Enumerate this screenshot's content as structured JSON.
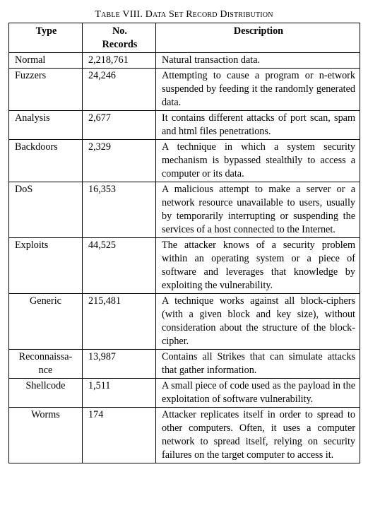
{
  "caption": "Table VIII. Data Set Record Distribution",
  "headers": {
    "type": "Type",
    "records_line1": "No.",
    "records_line2": "Records",
    "description": "Description"
  },
  "rows": [
    {
      "type": "Normal",
      "records": "2,218,761",
      "description": "Natural transaction data."
    },
    {
      "type": "Fuzzers",
      "records": "24,246",
      "description": "Attempting to cause a program or n-etwork suspended by feeding it the randomly generated data."
    },
    {
      "type": "Analysis",
      "records": "2,677",
      "description": "It contains different attacks of port scan, spam and html files penetrations."
    },
    {
      "type": "Backdoors",
      "records": "2,329",
      "description": "A technique in which a system security mechanism is bypassed stealthily to access a computer or its data."
    },
    {
      "type": "DoS",
      "records": "16,353",
      "description": "A malicious attempt to make a server or a network resource unavailable to users, usually by temporarily interrupting or suspending the services of a host connected to the Internet."
    },
    {
      "type": "Exploits",
      "records": "44,525",
      "description": "The attacker knows of a security problem within an operating system or a piece of software and leverages that knowledge by exploiting the vulnerability."
    },
    {
      "type": "Generic",
      "records": "215,481",
      "description": "A technique works against all block-ciphers (with a given block and key size), without consideration about the structure of the block-cipher."
    },
    {
      "type": "Reconnaissa-nce",
      "records": "13,987",
      "description": "Contains all Strikes that can simulate attacks that gather information."
    },
    {
      "type": "Shellcode",
      "records": "1,511",
      "description": "A small piece of code used as the payload in the exploitation of software vulnerability."
    },
    {
      "type": "Worms",
      "records": "174",
      "description": "Attacker replicates itself in order to spread to other computers. Often, it uses a computer network to spread itself, relying on security failures on the target computer to access it."
    }
  ]
}
